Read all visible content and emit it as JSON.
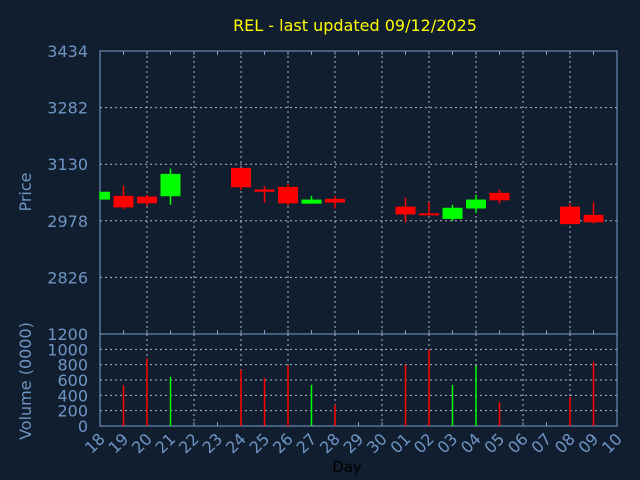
{
  "chart_data": [
    {
      "type": "candlestick",
      "title": "REL - last updated 09/12/2025",
      "ylabel": "Price",
      "ylim": [
        2674,
        3434
      ],
      "yticks": [
        "3434",
        "3282",
        "3130",
        "2978",
        "2826"
      ],
      "grid": true,
      "colors": {
        "up": "#00ff00",
        "down": "#ff0000"
      },
      "x": [
        "18",
        "19",
        "20",
        "21",
        "24",
        "25",
        "26",
        "27",
        "28",
        "01",
        "02",
        "03",
        "04",
        "05",
        "08",
        "09"
      ],
      "open": [
        3035,
        3045,
        3043,
        3044,
        3120,
        3062,
        3069,
        3024,
        3037,
        3016,
        2998,
        2983,
        3011,
        3053,
        3016,
        2994
      ],
      "high": [
        3056,
        3072,
        3048,
        3118,
        3120,
        3072,
        3078,
        3045,
        3045,
        3040,
        3028,
        3021,
        3048,
        3061,
        3024,
        3027
      ],
      "low": [
        3035,
        3009,
        3017,
        3021,
        3061,
        3027,
        3019,
        3024,
        3011,
        2974,
        2993,
        2977,
        3000,
        3025,
        2969,
        2971
      ],
      "close": [
        3056,
        3014,
        3025,
        3104,
        3068,
        3056,
        3025,
        3035,
        3027,
        2995,
        2993,
        3013,
        3035,
        3033,
        2969,
        2974
      ]
    },
    {
      "type": "bar",
      "ylabel": "Volume (0000)",
      "xlabel": "Day",
      "ylim": [
        0,
        1200
      ],
      "yticks": [
        "0",
        "200",
        "400",
        "600",
        "800",
        "1000",
        "1200"
      ],
      "xticks": [
        "18",
        "19",
        "20",
        "21",
        "22",
        "23",
        "24",
        "25",
        "26",
        "27",
        "28",
        "29",
        "30",
        "01",
        "02",
        "03",
        "04",
        "05",
        "06",
        "07",
        "08",
        "09",
        "10"
      ],
      "grid": true,
      "x": [
        "19",
        "20",
        "21",
        "24",
        "25",
        "26",
        "27",
        "28",
        "01",
        "02",
        "03",
        "04",
        "05",
        "08",
        "09"
      ],
      "values": [
        528,
        879,
        640,
        736,
        628,
        788,
        537,
        277,
        797,
        1000,
        537,
        788,
        312,
        381,
        831
      ],
      "direction": [
        "down",
        "down",
        "up",
        "down",
        "down",
        "down",
        "up",
        "down",
        "down",
        "down",
        "up",
        "up",
        "down",
        "down",
        "down"
      ]
    }
  ]
}
